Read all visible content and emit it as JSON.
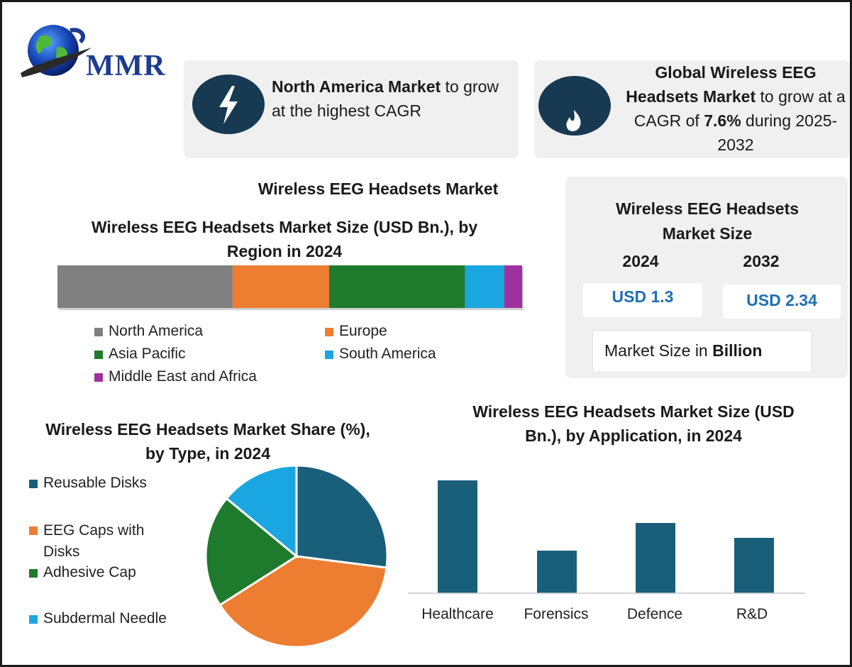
{
  "logo": {
    "text": "MMR"
  },
  "highlights": {
    "north_america": {
      "bold": "North America Market",
      "rest": " to grow at the highest CAGR",
      "icon": "lightning-icon"
    },
    "global": {
      "bold1": "Global Wireless EEG Headsets Market",
      "mid": " to grow at a CAGR of ",
      "bold2": "7.6%",
      "rest": " during 2025-2032",
      "icon": "flame-icon"
    }
  },
  "main_title": "Wireless EEG Headsets Market",
  "market_size": {
    "title": "Wireless EEG Headsets Market Size",
    "year1": "2024",
    "year2": "2032",
    "value1": "USD 1.3",
    "value2": "USD 2.34",
    "note_prefix": "Market Size in ",
    "note_bold": "Billion"
  },
  "colors": {
    "navy": "#173a52",
    "bar_blue": "#1a5f7a",
    "north_america": "#808080",
    "europe": "#ed7d31",
    "asia_pacific": "#1e7b2e",
    "south_america": "#1aa6e0",
    "mea": "#a0309f"
  },
  "chart_data": [
    {
      "type": "bar",
      "orientation": "horizontal-stacked",
      "title": "Wireless EEG Headsets Market Size (USD Bn.), by Region in 2024",
      "categories": [
        "North America",
        "Europe",
        "Asia Pacific",
        "South America",
        "Middle East and Africa"
      ],
      "values": [
        0.49,
        0.27,
        0.38,
        0.11,
        0.05
      ],
      "colors": [
        "#808080",
        "#ed7d31",
        "#1e7b2e",
        "#1aa6e0",
        "#a0309f"
      ],
      "legend": "bottom"
    },
    {
      "type": "pie",
      "title": "Wireless EEG Headsets Market Share (%), by Type, in 2024",
      "categories": [
        "Reusable Disks",
        "EEG Caps with Disks",
        "Adhesive Cap",
        "Subdermal Needle"
      ],
      "values": [
        27,
        39,
        20,
        14
      ],
      "colors": [
        "#1a5f7a",
        "#ed7d31",
        "#1e7b2e",
        "#1aa6e0"
      ],
      "legend": "left"
    },
    {
      "type": "bar",
      "title": "Wireless EEG Headsets Market Size (USD Bn.), by Application, in 2024",
      "categories": [
        "Healthcare",
        "Forensics",
        "Defence",
        "R&D"
      ],
      "values": [
        0.53,
        0.2,
        0.33,
        0.26
      ],
      "ylim": [
        0,
        0.6
      ],
      "color": "#1a5f7a",
      "grid": false
    }
  ]
}
